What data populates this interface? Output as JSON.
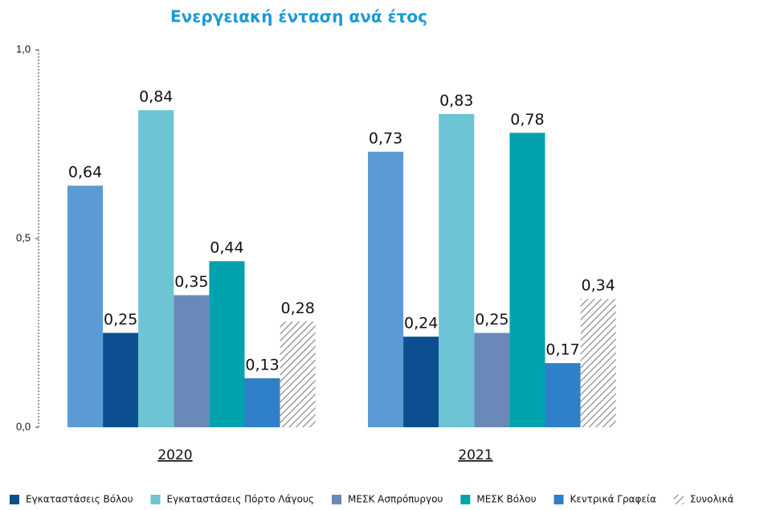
{
  "chart_data": {
    "type": "bar",
    "title": "Ενεργειακή ένταση ανά έτος",
    "categories": [
      "2020",
      "2021"
    ],
    "series": [
      {
        "name": null,
        "color": "#5b9bd5",
        "values": [
          0.64,
          0.73
        ],
        "value_labels": [
          "0,64",
          "0,73"
        ]
      },
      {
        "name": "Εγκαταστάσεις Βόλου",
        "color": "#0b4f91",
        "values": [
          0.25,
          0.24
        ],
        "value_labels": [
          "0,25",
          "0,24"
        ]
      },
      {
        "name": "Εγκαταστάσεις Πόρτο Λάγους",
        "color": "#6cc4d4",
        "values": [
          0.84,
          0.83
        ],
        "value_labels": [
          "0,84",
          "0,83"
        ]
      },
      {
        "name": "ΜΕΣΚ Ασπρόπυργου",
        "color": "#6b89b8",
        "values": [
          0.35,
          0.25
        ],
        "value_labels": [
          "0,35",
          "0,25"
        ]
      },
      {
        "name": "ΜΕΣΚ Βόλου",
        "color": "#00a3ad",
        "values": [
          0.44,
          0.78
        ],
        "value_labels": [
          "0,44",
          "0,78"
        ]
      },
      {
        "name": "Κεντρικά Γραφεία",
        "color": "#2f80c8",
        "values": [
          0.13,
          0.17
        ],
        "value_labels": [
          "0,13",
          "0,17"
        ]
      },
      {
        "name": "Συνολικά",
        "color": "#8c8c8c",
        "pattern": "hatch",
        "values": [
          0.28,
          0.34
        ],
        "value_labels": [
          "0,28",
          "0,34"
        ]
      }
    ],
    "ylim": [
      0,
      1
    ],
    "yticks": [
      {
        "value": 0,
        "label": "0,0"
      },
      {
        "value": 0.5,
        "label": "0,5"
      },
      {
        "value": 1,
        "label": "1,0"
      }
    ],
    "legend": "bottom"
  }
}
